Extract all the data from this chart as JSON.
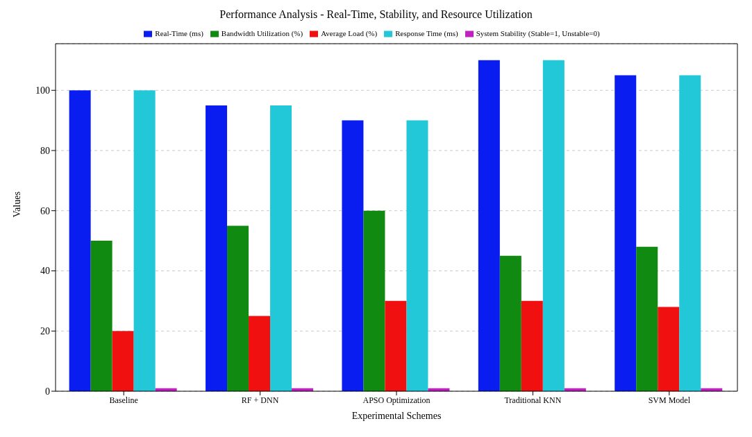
{
  "chart_data": {
    "type": "bar",
    "title": "Performance Analysis - Real-Time, Stability, and Resource Utilization",
    "xlabel": "Experimental Schemes",
    "ylabel": "Values",
    "categories": [
      "Baseline",
      "RF + DNN",
      "APSO Optimization",
      "Traditional KNN",
      "SVM Model"
    ],
    "series": [
      {
        "name": "Real-Time (ms)",
        "color": "#0a1df0",
        "values": [
          100,
          95,
          90,
          110,
          105
        ]
      },
      {
        "name": "Bandwidth Utilization (%)",
        "color": "#108a10",
        "values": [
          50,
          55,
          60,
          45,
          48
        ]
      },
      {
        "name": "Average Load (%)",
        "color": "#f01010",
        "values": [
          20,
          25,
          30,
          30,
          28
        ]
      },
      {
        "name": "Response Time (ms)",
        "color": "#22c8d8",
        "values": [
          100,
          95,
          90,
          110,
          105
        ]
      },
      {
        "name": "System Stability (Stable=1, Unstable=0)",
        "color": "#c020c0",
        "values": [
          1,
          1,
          1,
          1,
          1
        ]
      }
    ],
    "ylim": [
      0,
      115.5
    ],
    "yticks": [
      0,
      20,
      40,
      60,
      80,
      100
    ],
    "grid": "y",
    "legend": "top"
  }
}
